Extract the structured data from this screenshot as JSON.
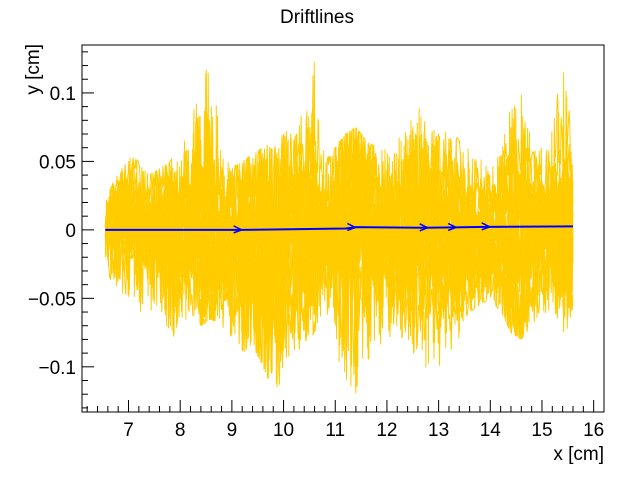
{
  "colors": {
    "background": "#ffffff",
    "axes": "#000000",
    "electron_drift": "#ffcc00",
    "ion_drift": "#0000ff"
  },
  "chart_data": {
    "type": "line",
    "title": "Driftlines",
    "xlabel": "x [cm]",
    "ylabel": "y [cm]",
    "xlim": [
      6.1,
      16.2
    ],
    "ylim": [
      -0.133,
      0.135
    ],
    "grid": false,
    "x_ticks": [
      7,
      8,
      9,
      10,
      11,
      12,
      13,
      14,
      15,
      16
    ],
    "y_ticks": [
      -0.1,
      -0.05,
      0,
      0.05,
      0.1
    ],
    "x_tick_labels": [
      "7",
      "8",
      "9",
      "10",
      "11",
      "12",
      "13",
      "14",
      "15",
      "16"
    ],
    "y_tick_labels": [
      "−0.1",
      "−0.05",
      "0",
      "0.05",
      "0.1"
    ],
    "series": [
      {
        "color": "#ffcc00",
        "x_range": [
          6.55,
          15.6
        ],
        "envelope_x": [
          6.55,
          6.8,
          7.0,
          7.2,
          7.4,
          7.6,
          7.8,
          8.0,
          8.2,
          8.4,
          8.6,
          8.8,
          9.0,
          9.2,
          9.4,
          9.6,
          9.8,
          10.0,
          10.2,
          10.4,
          10.6,
          10.8,
          11.0,
          11.2,
          11.4,
          11.6,
          11.8,
          12.0,
          12.2,
          12.4,
          12.6,
          12.8,
          13.0,
          13.2,
          13.4,
          13.6,
          13.8,
          14.0,
          14.2,
          14.4,
          14.6,
          14.8,
          15.0,
          15.2,
          15.4,
          15.6
        ],
        "envelope_upper": [
          0.02,
          0.045,
          0.055,
          0.05,
          0.04,
          0.045,
          0.05,
          0.06,
          0.08,
          0.11,
          0.125,
          0.06,
          0.045,
          0.05,
          0.055,
          0.06,
          0.065,
          0.07,
          0.08,
          0.095,
          0.128,
          0.05,
          0.06,
          0.07,
          0.075,
          0.065,
          0.06,
          0.06,
          0.07,
          0.085,
          0.09,
          0.08,
          0.07,
          0.075,
          0.065,
          0.06,
          0.055,
          0.045,
          0.06,
          0.095,
          0.11,
          0.07,
          0.065,
          0.075,
          0.125,
          0.065
        ],
        "envelope_lower": [
          -0.03,
          -0.045,
          -0.05,
          -0.06,
          -0.07,
          -0.055,
          -0.08,
          -0.075,
          -0.06,
          -0.07,
          -0.065,
          -0.07,
          -0.08,
          -0.09,
          -0.085,
          -0.1,
          -0.118,
          -0.11,
          -0.09,
          -0.085,
          -0.075,
          -0.06,
          -0.09,
          -0.11,
          -0.12,
          -0.1,
          -0.09,
          -0.08,
          -0.075,
          -0.085,
          -0.095,
          -0.105,
          -0.1,
          -0.09,
          -0.08,
          -0.06,
          -0.055,
          -0.05,
          -0.06,
          -0.075,
          -0.08,
          -0.07,
          -0.065,
          -0.06,
          -0.075,
          -0.07
        ]
      },
      {
        "color": "#0000ff",
        "x": [
          6.55,
          9.15,
          11.2,
          11.4,
          12.7,
          13.3,
          13.9,
          15.6
        ],
        "y": [
          0.0,
          0.0,
          0.001,
          0.002,
          0.0015,
          0.0018,
          0.0022,
          0.0025
        ]
      }
    ]
  }
}
